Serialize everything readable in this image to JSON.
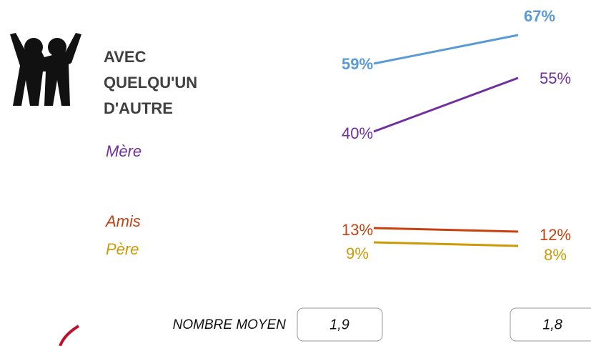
{
  "chart_data": {
    "type": "slope",
    "series": [
      {
        "name": "AVEC QUELQU'UN D'AUTRE",
        "color": "#5b9bd5",
        "values": [
          59,
          67
        ],
        "value_labels": [
          "59%",
          "67%"
        ]
      },
      {
        "name": "Mère",
        "color": "#7030a0",
        "values": [
          40,
          55
        ],
        "value_labels": [
          "40%",
          "55%"
        ]
      },
      {
        "name": "Amis",
        "color": "#c8400f",
        "values": [
          13,
          12
        ],
        "value_labels": [
          "13%",
          "12%"
        ]
      },
      {
        "name": "Père",
        "color": "#cc9a06",
        "values": [
          9,
          8
        ],
        "value_labels": [
          "9%",
          "8%"
        ]
      }
    ],
    "average": {
      "label": "NOMBRE MOYEN",
      "values": [
        1.9,
        1.8
      ],
      "value_labels": [
        "1,9",
        "1,8"
      ]
    }
  }
}
